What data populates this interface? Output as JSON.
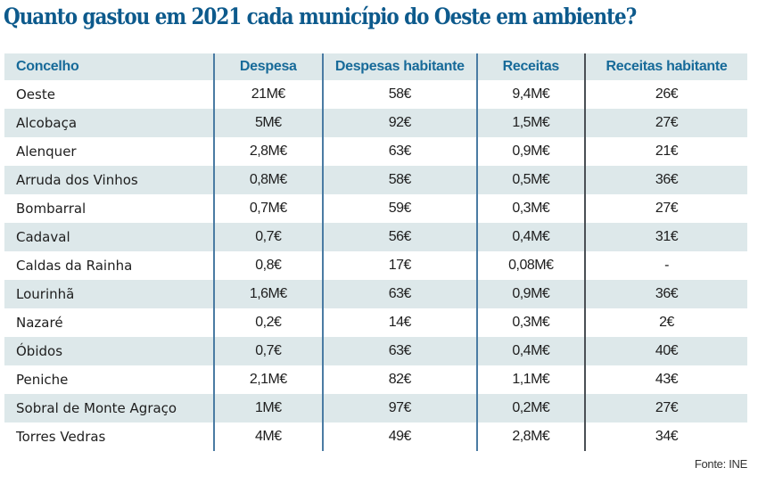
{
  "title": "Quanto gastou em 2021 cada município do Oeste em ambiente?",
  "table": {
    "headers": [
      "Concelho",
      "Despesa",
      "Despesas habitante",
      "Receitas",
      "Receitas habitante"
    ],
    "rows": [
      [
        "Oeste",
        "21M€",
        "58€",
        "9,4M€",
        "26€"
      ],
      [
        "Alcobaça",
        "5M€",
        "92€",
        "1,5M€",
        "27€"
      ],
      [
        "Alenquer",
        "2,8M€",
        "63€",
        "0,9M€",
        "21€"
      ],
      [
        "Arruda dos Vinhos",
        "0,8M€",
        "58€",
        "0,5M€",
        "36€"
      ],
      [
        "Bombarral",
        "0,7M€",
        "59€",
        "0,3M€",
        "27€"
      ],
      [
        "Cadaval",
        "0,7€",
        "56€",
        "0,4M€",
        "31€"
      ],
      [
        "Caldas da Rainha",
        "0,8€",
        "17€",
        "0,08M€",
        "-"
      ],
      [
        "Lourinhã",
        "1,6M€",
        "63€",
        "0,9M€",
        "36€"
      ],
      [
        "Nazaré",
        "0,2€",
        "14€",
        "0,3M€",
        "2€"
      ],
      [
        "Óbidos",
        "0,7€",
        "63€",
        "0,4M€",
        "40€"
      ],
      [
        "Peniche",
        "2,1M€",
        "82€",
        "1,1M€",
        "43€"
      ],
      [
        "Sobral de Monte Agraço",
        "1M€",
        "97€",
        "0,2M€",
        "27€"
      ],
      [
        "Torres Vedras",
        "4M€",
        "49€",
        "2,8M€",
        "34€"
      ]
    ]
  },
  "source": "Fonte: INE",
  "colors": {
    "title": "#0d5a8c",
    "header_text": "#176a99",
    "stripe": "#dde8ea"
  }
}
